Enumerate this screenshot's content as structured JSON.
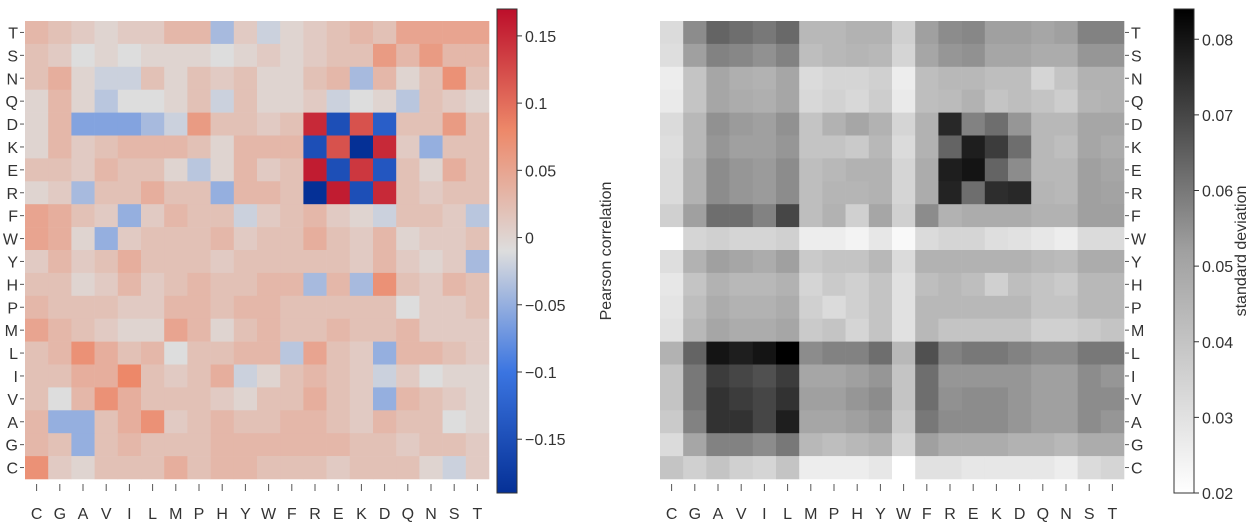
{
  "chart_data": [
    {
      "type": "heatmap",
      "x_categories": [
        "C",
        "G",
        "A",
        "V",
        "I",
        "L",
        "M",
        "P",
        "H",
        "Y",
        "W",
        "F",
        "R",
        "E",
        "K",
        "D",
        "Q",
        "N",
        "S",
        "T"
      ],
      "y_categories": [
        "T",
        "S",
        "N",
        "Q",
        "D",
        "K",
        "E",
        "R",
        "F",
        "W",
        "Y",
        "H",
        "P",
        "M",
        "L",
        "I",
        "V",
        "A",
        "G",
        "C"
      ],
      "colorbar": {
        "label": "Pearson correlation",
        "range": [
          -0.19,
          0.17
        ],
        "ticks": [
          0.15,
          0.1,
          0.05,
          0,
          -0.05,
          -0.1,
          -0.15
        ],
        "tick_labels": [
          "0.15",
          "0.1",
          "0.05",
          "0",
          "−0.05",
          "−0.1",
          "−0.15"
        ],
        "colormap": "coolwarm"
      },
      "values": [
        [
          0.03,
          0.02,
          0.01,
          0.0,
          0.01,
          0.01,
          0.03,
          0.03,
          -0.04,
          0.01,
          -0.02,
          0.0,
          0.01,
          0.02,
          0.03,
          0.02,
          0.05,
          0.05,
          0.05,
          0.05
        ],
        [
          0.02,
          0.01,
          -0.01,
          0.0,
          -0.01,
          0.0,
          0.0,
          0.0,
          -0.01,
          0.0,
          0.01,
          0.0,
          0.01,
          0.02,
          0.02,
          0.06,
          0.03,
          0.06,
          0.03,
          0.03
        ],
        [
          0.02,
          0.04,
          0.0,
          -0.02,
          -0.02,
          0.02,
          0.0,
          0.02,
          0.01,
          0.02,
          0.0,
          0.0,
          0.02,
          0.03,
          -0.04,
          0.03,
          0.0,
          0.02,
          0.07,
          0.02
        ],
        [
          0.0,
          0.03,
          0.0,
          -0.03,
          -0.01,
          -0.01,
          0.0,
          0.02,
          -0.02,
          0.02,
          0.0,
          0.0,
          0.01,
          -0.02,
          -0.01,
          0.0,
          -0.03,
          0.02,
          0.01,
          0.0
        ],
        [
          0.0,
          0.03,
          -0.06,
          -0.06,
          -0.06,
          -0.04,
          -0.02,
          0.06,
          0.02,
          0.02,
          0.01,
          0.02,
          0.15,
          -0.15,
          0.12,
          -0.13,
          0.02,
          0.02,
          0.06,
          0.02
        ],
        [
          0.0,
          0.03,
          0.01,
          0.02,
          0.03,
          0.03,
          0.03,
          0.02,
          0.0,
          0.03,
          0.03,
          0.03,
          -0.15,
          0.12,
          -0.19,
          0.15,
          0.01,
          -0.05,
          0.02,
          0.02
        ],
        [
          0.02,
          0.02,
          0.01,
          0.03,
          0.02,
          0.02,
          0.0,
          -0.03,
          0.0,
          0.03,
          0.01,
          0.02,
          0.16,
          -0.15,
          0.14,
          -0.14,
          0.02,
          0.0,
          0.04,
          0.02
        ],
        [
          0.0,
          0.01,
          -0.04,
          0.02,
          0.02,
          0.04,
          0.02,
          0.02,
          -0.05,
          0.03,
          0.03,
          0.02,
          -0.19,
          0.16,
          -0.15,
          0.15,
          0.02,
          0.01,
          0.02,
          0.02
        ],
        [
          0.05,
          0.04,
          0.02,
          0.01,
          -0.05,
          0.01,
          0.03,
          0.02,
          0.02,
          -0.02,
          0.01,
          0.02,
          0.03,
          0.01,
          0.0,
          -0.02,
          0.02,
          0.02,
          0.01,
          -0.03
        ],
        [
          0.05,
          0.04,
          0.0,
          -0.05,
          0.01,
          0.02,
          0.02,
          0.02,
          0.03,
          0.01,
          0.02,
          0.02,
          0.04,
          0.02,
          0.01,
          0.03,
          0.0,
          0.01,
          0.01,
          0.02
        ],
        [
          0.01,
          0.03,
          0.01,
          0.02,
          0.04,
          0.02,
          0.02,
          0.02,
          0.01,
          0.02,
          0.02,
          0.02,
          0.02,
          0.02,
          0.01,
          0.03,
          0.01,
          0.0,
          0.01,
          -0.04
        ],
        [
          0.02,
          0.02,
          0.0,
          0.01,
          0.03,
          0.01,
          0.02,
          0.03,
          0.02,
          0.02,
          0.03,
          0.03,
          -0.04,
          0.03,
          -0.04,
          0.07,
          0.02,
          0.01,
          0.03,
          0.02
        ],
        [
          0.03,
          0.02,
          0.02,
          0.02,
          0.01,
          0.01,
          0.03,
          0.03,
          0.02,
          0.03,
          0.03,
          0.02,
          0.02,
          0.02,
          0.02,
          0.02,
          -0.01,
          0.01,
          0.01,
          0.02
        ],
        [
          0.05,
          0.03,
          0.02,
          0.01,
          0.0,
          0.0,
          0.05,
          0.03,
          0.0,
          0.02,
          0.03,
          0.02,
          0.02,
          0.03,
          0.02,
          0.02,
          0.03,
          0.01,
          0.01,
          0.01
        ],
        [
          0.02,
          0.03,
          0.07,
          0.04,
          0.02,
          0.03,
          -0.01,
          0.02,
          0.02,
          0.03,
          0.03,
          -0.03,
          0.05,
          0.02,
          0.01,
          -0.05,
          0.03,
          0.03,
          0.02,
          0.01
        ],
        [
          0.02,
          0.02,
          0.04,
          0.04,
          0.08,
          0.02,
          0.01,
          0.02,
          0.04,
          -0.02,
          0.0,
          0.02,
          0.03,
          0.02,
          0.01,
          -0.02,
          0.01,
          -0.01,
          0.0,
          0.0
        ],
        [
          0.02,
          -0.01,
          0.03,
          0.07,
          0.04,
          0.02,
          0.02,
          0.02,
          0.01,
          0.0,
          0.02,
          0.02,
          0.04,
          0.02,
          0.01,
          -0.05,
          0.03,
          0.02,
          0.01,
          0.0
        ],
        [
          0.03,
          -0.05,
          -0.05,
          0.02,
          0.04,
          0.07,
          0.01,
          0.02,
          0.03,
          0.02,
          0.02,
          0.03,
          0.03,
          0.02,
          0.01,
          0.03,
          0.02,
          0.02,
          -0.01,
          0.0
        ],
        [
          0.03,
          0.02,
          -0.05,
          0.02,
          0.03,
          0.02,
          0.02,
          0.02,
          0.03,
          0.03,
          0.03,
          0.03,
          0.03,
          0.03,
          0.02,
          0.02,
          0.01,
          0.02,
          0.02,
          0.01
        ],
        [
          0.07,
          0.01,
          0.0,
          0.02,
          0.02,
          0.02,
          0.04,
          0.02,
          0.03,
          0.03,
          0.02,
          0.02,
          0.02,
          0.01,
          0.02,
          0.02,
          0.02,
          0.0,
          -0.02,
          0.01
        ]
      ]
    },
    {
      "type": "heatmap",
      "x_categories": [
        "C",
        "G",
        "A",
        "V",
        "I",
        "L",
        "M",
        "P",
        "H",
        "Y",
        "W",
        "F",
        "R",
        "E",
        "K",
        "D",
        "Q",
        "N",
        "S",
        "T"
      ],
      "y_categories": [
        "T",
        "S",
        "N",
        "Q",
        "D",
        "K",
        "E",
        "R",
        "F",
        "W",
        "Y",
        "H",
        "P",
        "M",
        "L",
        "I",
        "V",
        "A",
        "G",
        "C"
      ],
      "colorbar": {
        "label": "standard deviation",
        "range": [
          0.02,
          0.084
        ],
        "ticks": [
          0.08,
          0.07,
          0.06,
          0.05,
          0.04,
          0.03,
          0.02
        ],
        "tick_labels": [
          "0.08",
          "0.07",
          "0.06",
          "0.05",
          "0.04",
          "0.03",
          "0.02"
        ],
        "colormap": "greys"
      },
      "values": [
        [
          0.032,
          0.056,
          0.064,
          0.062,
          0.06,
          0.063,
          0.044,
          0.044,
          0.046,
          0.046,
          0.036,
          0.052,
          0.056,
          0.057,
          0.052,
          0.052,
          0.05,
          0.052,
          0.058,
          0.058
        ],
        [
          0.031,
          0.052,
          0.058,
          0.057,
          0.055,
          0.058,
          0.042,
          0.044,
          0.045,
          0.044,
          0.034,
          0.05,
          0.054,
          0.055,
          0.05,
          0.05,
          0.048,
          0.048,
          0.054,
          0.054
        ],
        [
          0.026,
          0.04,
          0.05,
          0.047,
          0.046,
          0.05,
          0.032,
          0.034,
          0.034,
          0.036,
          0.026,
          0.042,
          0.044,
          0.044,
          0.042,
          0.042,
          0.034,
          0.04,
          0.046,
          0.046
        ],
        [
          0.027,
          0.04,
          0.05,
          0.048,
          0.047,
          0.05,
          0.033,
          0.035,
          0.033,
          0.037,
          0.027,
          0.042,
          0.043,
          0.046,
          0.04,
          0.042,
          0.04,
          0.037,
          0.045,
          0.046
        ],
        [
          0.032,
          0.044,
          0.055,
          0.053,
          0.052,
          0.055,
          0.04,
          0.046,
          0.05,
          0.046,
          0.034,
          0.046,
          0.076,
          0.058,
          0.062,
          0.054,
          0.044,
          0.044,
          0.05,
          0.05
        ],
        [
          0.031,
          0.044,
          0.054,
          0.052,
          0.052,
          0.054,
          0.04,
          0.04,
          0.038,
          0.044,
          0.032,
          0.046,
          0.064,
          0.078,
          0.072,
          0.062,
          0.044,
          0.042,
          0.05,
          0.048
        ],
        [
          0.032,
          0.046,
          0.056,
          0.054,
          0.053,
          0.056,
          0.042,
          0.044,
          0.046,
          0.046,
          0.034,
          0.048,
          0.078,
          0.08,
          0.064,
          0.056,
          0.044,
          0.044,
          0.052,
          0.05
        ],
        [
          0.032,
          0.046,
          0.056,
          0.054,
          0.053,
          0.056,
          0.042,
          0.045,
          0.045,
          0.046,
          0.034,
          0.048,
          0.077,
          0.062,
          0.075,
          0.076,
          0.045,
          0.044,
          0.052,
          0.051
        ],
        [
          0.036,
          0.052,
          0.062,
          0.062,
          0.058,
          0.07,
          0.042,
          0.046,
          0.036,
          0.05,
          0.036,
          0.056,
          0.046,
          0.048,
          0.048,
          0.048,
          0.046,
          0.046,
          0.052,
          0.052
        ],
        [
          0.02,
          0.034,
          0.036,
          0.034,
          0.034,
          0.036,
          0.026,
          0.026,
          0.024,
          0.028,
          0.022,
          0.032,
          0.034,
          0.034,
          0.031,
          0.03,
          0.028,
          0.026,
          0.032,
          0.032
        ],
        [
          0.031,
          0.046,
          0.052,
          0.05,
          0.048,
          0.052,
          0.038,
          0.04,
          0.04,
          0.044,
          0.032,
          0.046,
          0.046,
          0.046,
          0.046,
          0.046,
          0.044,
          0.043,
          0.048,
          0.048
        ],
        [
          0.028,
          0.04,
          0.046,
          0.044,
          0.044,
          0.046,
          0.034,
          0.038,
          0.036,
          0.04,
          0.03,
          0.042,
          0.044,
          0.042,
          0.036,
          0.042,
          0.04,
          0.038,
          0.044,
          0.044
        ],
        [
          0.029,
          0.042,
          0.048,
          0.046,
          0.046,
          0.048,
          0.036,
          0.032,
          0.036,
          0.04,
          0.03,
          0.044,
          0.044,
          0.044,
          0.044,
          0.044,
          0.04,
          0.04,
          0.044,
          0.044
        ],
        [
          0.03,
          0.044,
          0.05,
          0.048,
          0.048,
          0.05,
          0.038,
          0.04,
          0.034,
          0.04,
          0.03,
          0.044,
          0.04,
          0.04,
          0.04,
          0.04,
          0.036,
          0.036,
          0.038,
          0.04
        ],
        [
          0.046,
          0.064,
          0.08,
          0.078,
          0.08,
          0.084,
          0.056,
          0.058,
          0.058,
          0.062,
          0.044,
          0.068,
          0.058,
          0.06,
          0.06,
          0.058,
          0.056,
          0.056,
          0.06,
          0.06
        ],
        [
          0.04,
          0.06,
          0.072,
          0.07,
          0.068,
          0.072,
          0.05,
          0.05,
          0.052,
          0.054,
          0.04,
          0.062,
          0.054,
          0.054,
          0.054,
          0.054,
          0.052,
          0.052,
          0.056,
          0.054
        ],
        [
          0.04,
          0.06,
          0.074,
          0.072,
          0.07,
          0.074,
          0.052,
          0.052,
          0.054,
          0.056,
          0.04,
          0.062,
          0.055,
          0.056,
          0.056,
          0.054,
          0.052,
          0.052,
          0.056,
          0.056
        ],
        [
          0.038,
          0.058,
          0.074,
          0.074,
          0.07,
          0.078,
          0.05,
          0.05,
          0.052,
          0.054,
          0.038,
          0.06,
          0.056,
          0.056,
          0.056,
          0.054,
          0.052,
          0.052,
          0.056,
          0.054
        ],
        [
          0.032,
          0.05,
          0.058,
          0.058,
          0.056,
          0.06,
          0.044,
          0.042,
          0.044,
          0.046,
          0.034,
          0.052,
          0.048,
          0.048,
          0.048,
          0.046,
          0.046,
          0.044,
          0.048,
          0.048
        ],
        [
          0.04,
          0.036,
          0.04,
          0.036,
          0.034,
          0.04,
          0.026,
          0.026,
          0.026,
          0.028,
          0.02,
          0.03,
          0.03,
          0.028,
          0.028,
          0.028,
          0.028,
          0.026,
          0.032,
          0.034
        ]
      ]
    }
  ]
}
